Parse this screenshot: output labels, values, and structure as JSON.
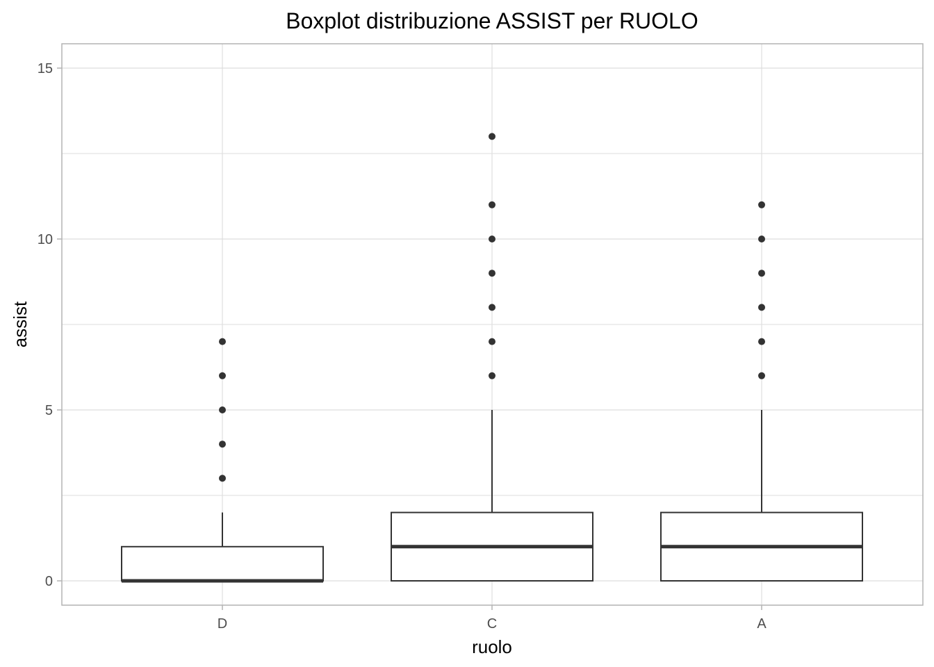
{
  "chart_data": {
    "type": "boxplot",
    "title": "Boxplot distribuzione ASSIST per RUOLO",
    "xlabel": "ruolo",
    "ylabel": "assist",
    "categories": [
      "D",
      "C",
      "A"
    ],
    "ylim": [
      -0.7,
      15.7
    ],
    "yticks": [
      0,
      5,
      10,
      15
    ],
    "grid": true,
    "series": [
      {
        "category": "D",
        "min": 0,
        "q1": 0,
        "median": 0,
        "q3": 1,
        "max": 2,
        "outliers": [
          3,
          4,
          5,
          6,
          7
        ]
      },
      {
        "category": "C",
        "min": 0,
        "q1": 0,
        "median": 1,
        "q3": 2,
        "max": 5,
        "outliers": [
          6,
          7,
          8,
          9,
          10,
          11,
          13
        ]
      },
      {
        "category": "A",
        "min": 0,
        "q1": 0,
        "median": 1,
        "q3": 2,
        "max": 5,
        "outliers": [
          6,
          7,
          8,
          9,
          10,
          11
        ]
      }
    ],
    "colors": {
      "box_stroke": "#333333",
      "outlier": "#333333",
      "grid": "#dedede",
      "panel_border": "#b3b3b3"
    }
  }
}
